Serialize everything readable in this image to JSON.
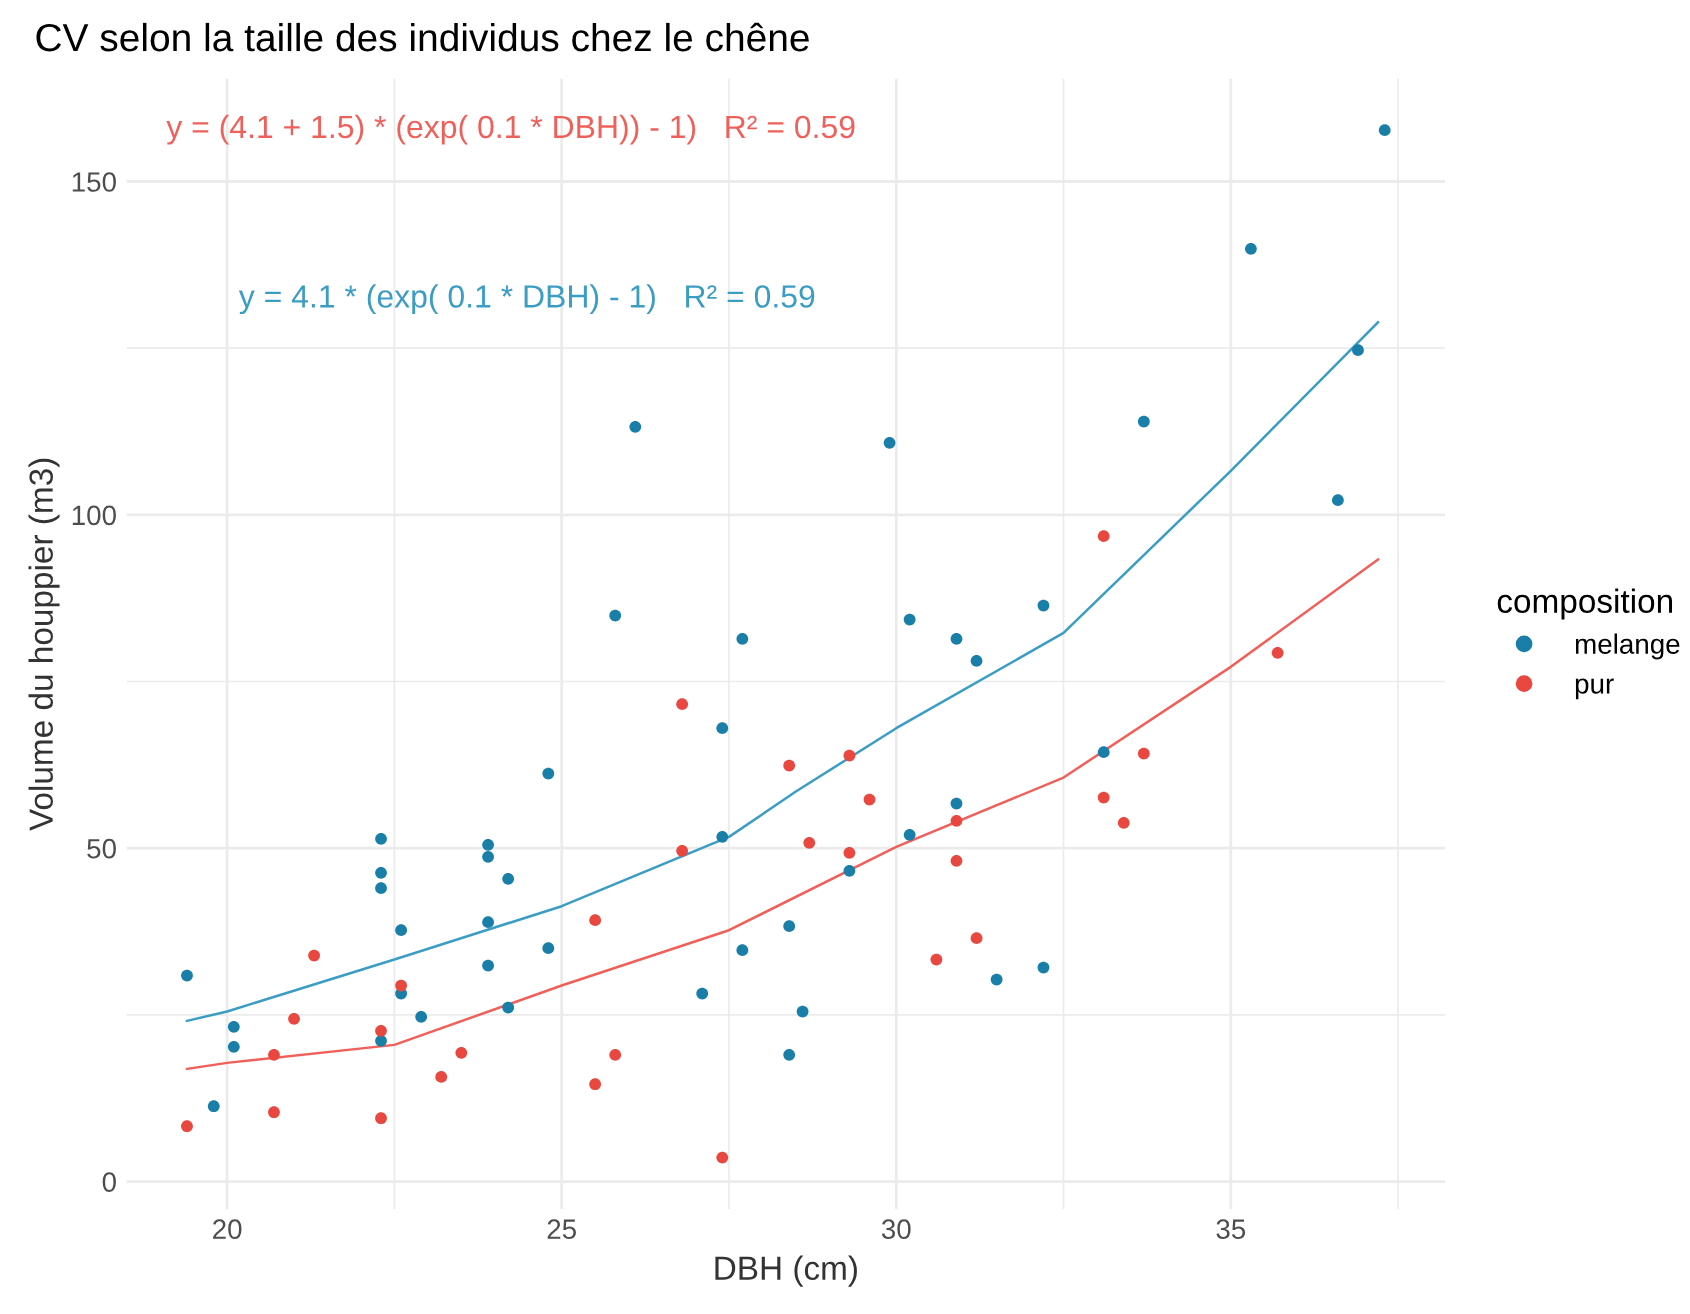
{
  "chart_data": {
    "type": "scatter",
    "title": "CV selon la taille des individus chez le chêne",
    "xlabel": "DBH (cm)",
    "ylabel": "Volume du houppier (m3)",
    "legend_title": "composition",
    "legend": "right",
    "grid": true,
    "xlim": [
      18.5,
      38.2
    ],
    "ylim": [
      -4.1,
      165.4
    ],
    "xticks": [
      20,
      {
        "value": 22.5,
        "label": null
      },
      25,
      {
        "value": 27.5,
        "label": null
      },
      30,
      {
        "value": 32.5,
        "label": null
      },
      35,
      {
        "value": 37.5,
        "label": null
      }
    ],
    "yticks": [
      0,
      {
        "value": 25,
        "label": null
      },
      50,
      {
        "value": 75,
        "label": null
      },
      100,
      {
        "value": 125,
        "label": null
      },
      150
    ],
    "annotations": [
      "y = (4.1 + 1.5) * (exp( 0.1 * DBH)) - 1)   R² = 0.59",
      "y = 4.1 * (exp( 0.1 * DBH) - 1)   R² = 0.59"
    ],
    "series": [
      {
        "name": "melange",
        "marker": "circle",
        "color": "#1a7fa8",
        "x": [
          19.4,
          19.8,
          20.1,
          20.1,
          22.3,
          22.3,
          22.3,
          22.3,
          22.6,
          22.6,
          22.9,
          23.9,
          23.9,
          23.9,
          23.9,
          24.2,
          24.2,
          24.8,
          24.8,
          26.1,
          25.8,
          27.1,
          27.4,
          27.4,
          27.7,
          27.7,
          28.4,
          28.4,
          28.6,
          29.3,
          29.9,
          30.2,
          30.2,
          30.9,
          30.9,
          31.2,
          31.5,
          32.2,
          32.2,
          33.1,
          33.7,
          35.3,
          36.6,
          36.9,
          37.3
        ],
        "values": [
          30.9,
          11.3,
          23.2,
          20.2,
          51.4,
          46.3,
          44.0,
          21.1,
          37.7,
          28.2,
          24.7,
          50.5,
          48.7,
          38.9,
          32.4,
          45.4,
          26.1,
          61.2,
          35.0,
          113.2,
          84.9,
          28.2,
          68.0,
          51.7,
          34.7,
          81.4,
          38.3,
          19.0,
          25.5,
          46.6,
          110.8,
          84.3,
          52.0,
          81.4,
          56.7,
          78.1,
          30.3,
          86.4,
          32.1,
          64.4,
          114.0,
          139.9,
          102.2,
          124.7,
          157.7
        ]
      },
      {
        "name": "pur",
        "marker": "circle",
        "color": "#e8483f",
        "x": [
          19.4,
          21.3,
          21.0,
          20.7,
          20.7,
          22.3,
          22.3,
          22.6,
          23.2,
          23.5,
          25.5,
          25.5,
          25.8,
          26.8,
          26.8,
          27.4,
          28.4,
          29.3,
          29.6,
          28.7,
          29.3,
          30.9,
          30.9,
          30.6,
          31.2,
          33.1,
          33.1,
          33.4,
          33.7,
          35.7
        ],
        "values": [
          8.3,
          33.9,
          24.4,
          19.0,
          10.4,
          22.6,
          9.5,
          29.4,
          15.7,
          19.3,
          39.2,
          14.6,
          19.0,
          71.6,
          49.6,
          3.6,
          62.4,
          63.9,
          57.3,
          50.8,
          49.3,
          54.1,
          48.1,
          33.3,
          36.5,
          96.8,
          57.6,
          53.8,
          64.2,
          79.3
        ]
      },
      {
        "type": "line",
        "color": "#3b9cc4",
        "x": [
          19.4,
          20,
          22.5,
          25,
          27.5,
          28.5,
          30,
          32.5,
          35,
          37.2
        ],
        "values": [
          24.1,
          25.5,
          33.3,
          41.3,
          51.7,
          58.5,
          68.0,
          82.3,
          106.6,
          128.9
        ]
      },
      {
        "type": "line",
        "color": "#f0605a",
        "x": [
          19.4,
          20,
          22.5,
          25,
          27.5,
          30,
          32.5,
          35,
          37.2
        ],
        "values": [
          16.9,
          17.8,
          20.5,
          29.4,
          37.7,
          50.2,
          60.6,
          77.2,
          93.3
        ]
      }
    ]
  }
}
